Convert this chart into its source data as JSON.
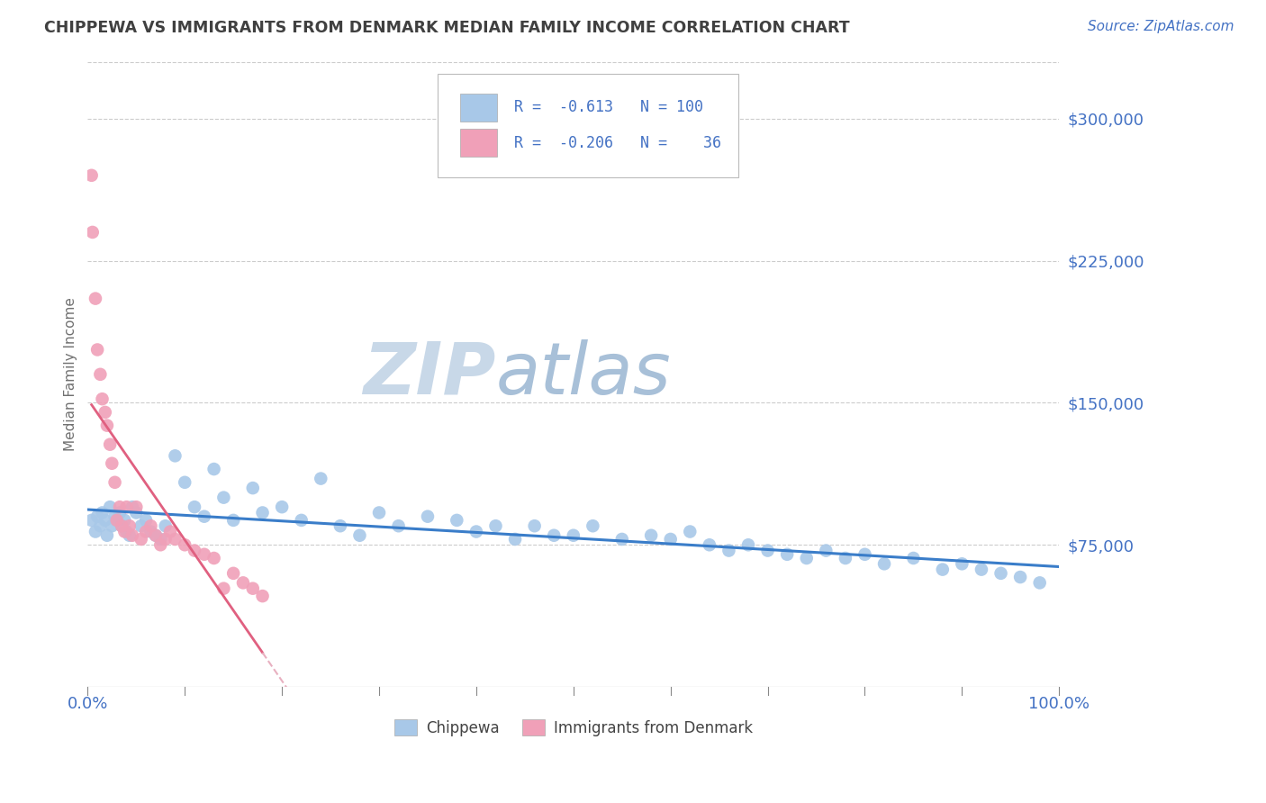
{
  "title": "CHIPPEWA VS IMMIGRANTS FROM DENMARK MEDIAN FAMILY INCOME CORRELATION CHART",
  "source_text": "Source: ZipAtlas.com",
  "ylabel": "Median Family Income",
  "xlim": [
    0.0,
    100.0
  ],
  "ylim": [
    0,
    330000
  ],
  "yticks": [
    75000,
    150000,
    225000,
    300000
  ],
  "ytick_labels": [
    "$75,000",
    "$150,000",
    "$225,000",
    "$300,000"
  ],
  "xtick_labels": [
    "0.0%",
    "100.0%"
  ],
  "color_blue": "#a8c8e8",
  "color_pink": "#f0a0b8",
  "color_blue_line": "#3a7dc9",
  "color_pink_line": "#e06080",
  "color_pink_line_dash": "#e8b0c0",
  "color_axis_labels": "#4472c4",
  "color_title": "#404040",
  "watermark_zip": "ZIP",
  "watermark_atlas": "atlas",
  "watermark_color_zip": "#c8d8e8",
  "watermark_color_atlas": "#a8c0d8",
  "background_color": "#ffffff",
  "chippewa_x": [
    0.4,
    0.8,
    1.0,
    1.3,
    1.5,
    1.8,
    2.0,
    2.3,
    2.5,
    2.8,
    3.0,
    3.3,
    3.5,
    3.8,
    4.0,
    4.3,
    4.6,
    5.0,
    5.5,
    6.0,
    6.5,
    7.0,
    7.5,
    8.0,
    9.0,
    10.0,
    11.0,
    12.0,
    13.0,
    14.0,
    15.0,
    17.0,
    18.0,
    20.0,
    22.0,
    24.0,
    26.0,
    28.0,
    30.0,
    32.0,
    35.0,
    38.0,
    40.0,
    42.0,
    44.0,
    46.0,
    48.0,
    50.0,
    52.0,
    55.0,
    58.0,
    60.0,
    62.0,
    64.0,
    66.0,
    68.0,
    70.0,
    72.0,
    74.0,
    76.0,
    78.0,
    80.0,
    82.0,
    85.0,
    88.0,
    90.0,
    92.0,
    94.0,
    96.0,
    98.0
  ],
  "chippewa_y": [
    88000,
    82000,
    90000,
    85000,
    92000,
    88000,
    80000,
    95000,
    85000,
    90000,
    88000,
    92000,
    85000,
    88000,
    82000,
    80000,
    95000,
    92000,
    85000,
    88000,
    82000,
    80000,
    78000,
    85000,
    122000,
    108000,
    95000,
    90000,
    115000,
    100000,
    88000,
    105000,
    92000,
    95000,
    88000,
    110000,
    85000,
    80000,
    92000,
    85000,
    90000,
    88000,
    82000,
    85000,
    78000,
    85000,
    80000,
    80000,
    85000,
    78000,
    80000,
    78000,
    82000,
    75000,
    72000,
    75000,
    72000,
    70000,
    68000,
    72000,
    68000,
    70000,
    65000,
    68000,
    62000,
    65000,
    62000,
    60000,
    58000,
    55000
  ],
  "denmark_x": [
    0.4,
    0.5,
    0.8,
    1.0,
    1.3,
    1.5,
    1.8,
    2.0,
    2.3,
    2.5,
    2.8,
    3.0,
    3.3,
    3.5,
    3.8,
    4.0,
    4.3,
    4.6,
    5.0,
    5.5,
    6.0,
    6.5,
    7.0,
    7.5,
    8.0,
    8.5,
    9.0,
    10.0,
    11.0,
    12.0,
    13.0,
    14.0,
    15.0,
    16.0,
    17.0,
    18.0
  ],
  "denmark_y": [
    270000,
    240000,
    205000,
    178000,
    165000,
    152000,
    145000,
    138000,
    128000,
    118000,
    108000,
    88000,
    95000,
    85000,
    82000,
    95000,
    85000,
    80000,
    95000,
    78000,
    82000,
    85000,
    80000,
    75000,
    78000,
    82000,
    78000,
    75000,
    72000,
    70000,
    68000,
    52000,
    60000,
    55000,
    52000,
    48000
  ]
}
